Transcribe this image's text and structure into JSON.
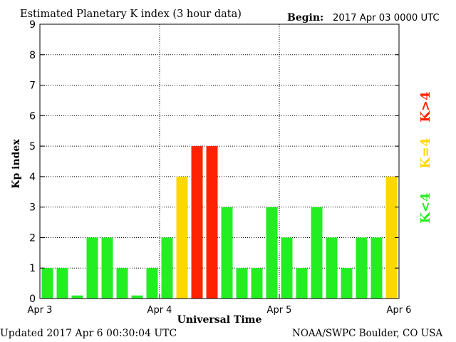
{
  "header": {
    "title": "Estimated Planetary K index (3 hour data)",
    "begin_label": "Begin:",
    "begin_value": "2017 Apr 03 0000 UTC"
  },
  "footer": {
    "updated": "Updated 2017 Apr  6 00:30:04 UTC",
    "credit": "NOAA/SWPC Boulder, CO USA"
  },
  "legend": {
    "low": "K<4",
    "equal": "K=4",
    "high": "K>4"
  },
  "colors": {
    "low": "#22ee22",
    "equal": "#ffd700",
    "high": "#ff2200",
    "axis": "#000000"
  },
  "chart_data": {
    "type": "bar",
    "title": "Estimated Planetary K index (3 hour data)",
    "xlabel": "Universal Time",
    "ylabel": "Kp index",
    "ylim": [
      0,
      9
    ],
    "yticks": [
      0,
      1,
      2,
      3,
      4,
      5,
      6,
      7,
      8,
      9
    ],
    "xticks": [
      "Apr 3",
      "Apr 4",
      "Apr 5",
      "Apr 6"
    ],
    "grid": true,
    "values": [
      1,
      1,
      0.1,
      2,
      2,
      1,
      0.1,
      1,
      2,
      4,
      5,
      5,
      3,
      1,
      1,
      3,
      2,
      1,
      3,
      2,
      1,
      2,
      2,
      4
    ]
  }
}
